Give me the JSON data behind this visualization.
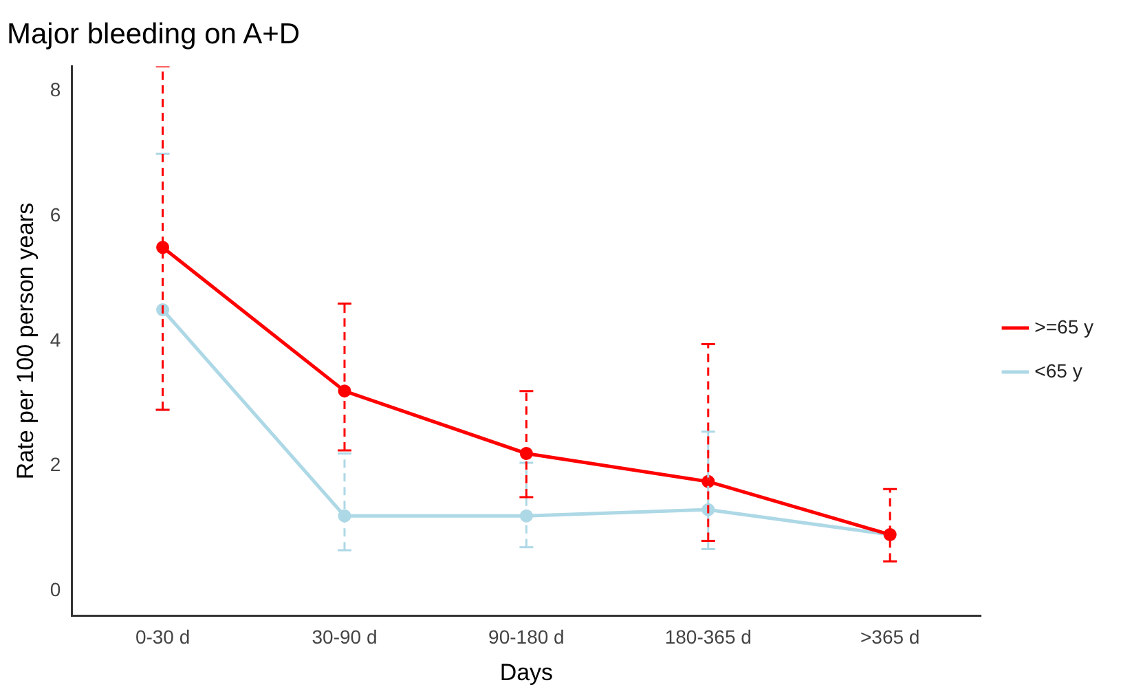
{
  "chart_data": {
    "type": "line",
    "title": "Major bleeding on A+D",
    "xlabel": "Days",
    "ylabel": "Rate per 100 person years",
    "categories": [
      "0-30 d",
      "30-90 d",
      "90-180 d",
      "180-365 d",
      ">365 d"
    ],
    "series": [
      {
        "name": "<65 y",
        "color": "#add8e6",
        "values": [
          4.5,
          1.2,
          1.2,
          1.3,
          0.9
        ],
        "errors": [
          [
            2.9,
            7.0
          ],
          [
            0.65,
            2.2
          ],
          [
            0.7,
            2.05
          ],
          [
            0.67,
            2.55
          ],
          null
        ]
      },
      {
        "name": ">=65 y",
        "color": "#ff0000",
        "values": [
          5.5,
          3.2,
          2.2,
          1.75,
          0.9
        ],
        "errors": [
          [
            2.9,
            8.4
          ],
          [
            2.25,
            4.6
          ],
          [
            1.5,
            3.2
          ],
          [
            0.8,
            3.95
          ],
          [
            0.47,
            1.63
          ]
        ]
      }
    ],
    "ylim": [
      -0.4,
      8.4
    ],
    "yticks": [
      0,
      2,
      4,
      6,
      8
    ],
    "grid": false,
    "legend": "right",
    "marker": "circle",
    "line_style": "solid"
  }
}
